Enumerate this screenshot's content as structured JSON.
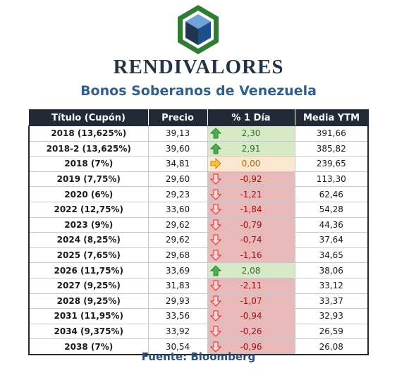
{
  "brand": "RENDIVALORES",
  "subtitle": "Bonos Soberanos de Venezuela",
  "source": "Fuente: Bloomberg",
  "colors": {
    "header_bg": "#222a35",
    "up": "#d7e9c7",
    "flat": "#fbe6cf",
    "down": "#e9b8b8",
    "brand_green": "#2e7d32",
    "brand_blue": "#1f4e8c"
  },
  "table": {
    "headers": [
      "Título (Cupón)",
      "Precio",
      "% 1 Día",
      "Media YTM"
    ],
    "rows": [
      {
        "title": "2018 (13,625%)",
        "price": "39,13",
        "change": "2,30",
        "direction": "up",
        "icon": "green-up-arrow-icon",
        "ytm": "391,66"
      },
      {
        "title": "2018-2 (13,625%)",
        "price": "39,60",
        "change": "2,91",
        "direction": "up",
        "icon": "green-up-arrow-icon",
        "ytm": "385,82"
      },
      {
        "title": "2018 (7%)",
        "price": "34,81",
        "change": "0,00",
        "direction": "flat",
        "icon": "yellow-right-arrow-icon",
        "ytm": "239,65"
      },
      {
        "title": "2019 (7,75%)",
        "price": "29,60",
        "change": "-0,92",
        "direction": "down",
        "icon": "red-down-arrow-icon",
        "ytm": "113,30"
      },
      {
        "title": "2020 (6%)",
        "price": "29,23",
        "change": "-1,21",
        "direction": "down",
        "icon": "red-down-arrow-icon",
        "ytm": "62,46"
      },
      {
        "title": "2022 (12,75%)",
        "price": "33,60",
        "change": "-1,84",
        "direction": "down",
        "icon": "red-down-arrow-icon",
        "ytm": "54,28"
      },
      {
        "title": "2023 (9%)",
        "price": "29,62",
        "change": "-0,79",
        "direction": "down",
        "icon": "red-down-arrow-icon",
        "ytm": "44,36"
      },
      {
        "title": "2024 (8,25%)",
        "price": "29,62",
        "change": "-0,74",
        "direction": "down",
        "icon": "red-down-arrow-icon",
        "ytm": "37,64"
      },
      {
        "title": "2025 (7,65%)",
        "price": "29,68",
        "change": "-1,16",
        "direction": "down",
        "icon": "red-down-arrow-icon",
        "ytm": "34,65"
      },
      {
        "title": "2026 (11,75%)",
        "price": "33,69",
        "change": "2,08",
        "direction": "up",
        "icon": "green-up-arrow-icon",
        "ytm": "38,06"
      },
      {
        "title": "2027 (9,25%)",
        "price": "31,83",
        "change": "-2,11",
        "direction": "down",
        "icon": "red-down-arrow-icon",
        "ytm": "33,12"
      },
      {
        "title": "2028 (9,25%)",
        "price": "29,93",
        "change": "-1,07",
        "direction": "down",
        "icon": "red-down-arrow-icon",
        "ytm": "33,37"
      },
      {
        "title": "2031 (11,95%)",
        "price": "33,56",
        "change": "-0,94",
        "direction": "down",
        "icon": "red-down-arrow-icon",
        "ytm": "32,93"
      },
      {
        "title": "2034 (9,375%)",
        "price": "33,92",
        "change": "-0,26",
        "direction": "down",
        "icon": "red-down-arrow-icon",
        "ytm": "26,59"
      },
      {
        "title": "2038 (7%)",
        "price": "30,54",
        "change": "-0,96",
        "direction": "down",
        "icon": "red-down-arrow-icon",
        "ytm": "26,08"
      }
    ]
  }
}
